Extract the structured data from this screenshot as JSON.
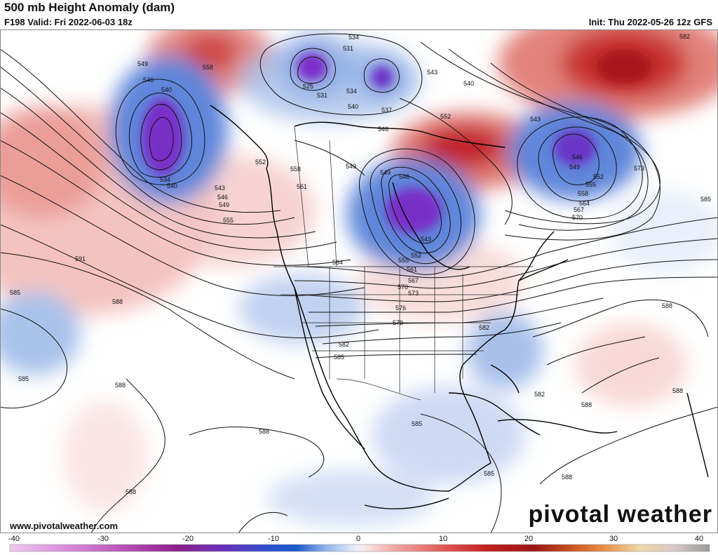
{
  "header": {
    "title": "500 mb Height Anomaly (dam)",
    "subtitle": "F198 Valid: Fri 2022-06-03 18z",
    "init": "Init: Thu 2022-05-26 12z GFS"
  },
  "footer": {
    "website": "www.pivotalweather.com",
    "logo": "pivotal weather"
  },
  "colorbar": {
    "ticks": [
      "-40",
      "-30",
      "-20",
      "-10",
      "0",
      "10",
      "20",
      "30",
      "40"
    ]
  },
  "contours": [
    {
      "id": "l1",
      "text": "549"
    },
    {
      "id": "l2",
      "text": "546"
    },
    {
      "id": "l3",
      "text": "540"
    },
    {
      "id": "l4",
      "text": "534"
    },
    {
      "id": "l5",
      "text": "540"
    },
    {
      "id": "l6",
      "text": "543"
    },
    {
      "id": "l7",
      "text": "546"
    },
    {
      "id": "l8",
      "text": "549"
    },
    {
      "id": "l9",
      "text": "555"
    },
    {
      "id": "l10",
      "text": "558"
    },
    {
      "id": "l11",
      "text": "534"
    },
    {
      "id": "l12",
      "text": "531"
    },
    {
      "id": "l13",
      "text": "525"
    },
    {
      "id": "l14",
      "text": "531"
    },
    {
      "id": "l15",
      "text": "534"
    },
    {
      "id": "l16",
      "text": "540"
    },
    {
      "id": "l17",
      "text": "537"
    },
    {
      "id": "l18",
      "text": "543"
    },
    {
      "id": "l19",
      "text": "540"
    },
    {
      "id": "l20",
      "text": "552"
    },
    {
      "id": "l21",
      "text": "546"
    },
    {
      "id": "l22",
      "text": "549"
    },
    {
      "id": "l23",
      "text": "558"
    },
    {
      "id": "l24",
      "text": "561"
    },
    {
      "id": "l25",
      "text": "552"
    },
    {
      "id": "l26",
      "text": "546"
    },
    {
      "id": "l27",
      "text": "549"
    },
    {
      "id": "l28",
      "text": "543"
    },
    {
      "id": "l29",
      "text": "555"
    },
    {
      "id": "l30",
      "text": "552"
    },
    {
      "id": "l31",
      "text": "564"
    },
    {
      "id": "l32",
      "text": "561"
    },
    {
      "id": "l33",
      "text": "567"
    },
    {
      "id": "l34",
      "text": "570"
    },
    {
      "id": "l35",
      "text": "573"
    },
    {
      "id": "l36",
      "text": "576"
    },
    {
      "id": "l37",
      "text": "579"
    },
    {
      "id": "l38",
      "text": "582"
    },
    {
      "id": "l39",
      "text": "582"
    },
    {
      "id": "l40",
      "text": "585"
    },
    {
      "id": "l41",
      "text": "543"
    },
    {
      "id": "l42",
      "text": "546"
    },
    {
      "id": "l43",
      "text": "549"
    },
    {
      "id": "l44",
      "text": "552"
    },
    {
      "id": "l45",
      "text": "555"
    },
    {
      "id": "l46",
      "text": "558"
    },
    {
      "id": "l47",
      "text": "564"
    },
    {
      "id": "l48",
      "text": "567"
    },
    {
      "id": "l49",
      "text": "570"
    },
    {
      "id": "l50",
      "text": "573"
    },
    {
      "id": "l51",
      "text": "585"
    },
    {
      "id": "l52",
      "text": "582"
    },
    {
      "id": "l53",
      "text": "591"
    },
    {
      "id": "l54",
      "text": "585"
    },
    {
      "id": "l55",
      "text": "588"
    },
    {
      "id": "l56",
      "text": "585"
    },
    {
      "id": "l57",
      "text": "588"
    },
    {
      "id": "l58",
      "text": "588"
    },
    {
      "id": "l59",
      "text": "588"
    },
    {
      "id": "l60",
      "text": "585"
    },
    {
      "id": "l61",
      "text": "585"
    },
    {
      "id": "l62",
      "text": "582"
    },
    {
      "id": "l63",
      "text": "588"
    },
    {
      "id": "l64",
      "text": "588"
    },
    {
      "id": "l65",
      "text": "588"
    },
    {
      "id": "l66",
      "text": "588"
    }
  ]
}
